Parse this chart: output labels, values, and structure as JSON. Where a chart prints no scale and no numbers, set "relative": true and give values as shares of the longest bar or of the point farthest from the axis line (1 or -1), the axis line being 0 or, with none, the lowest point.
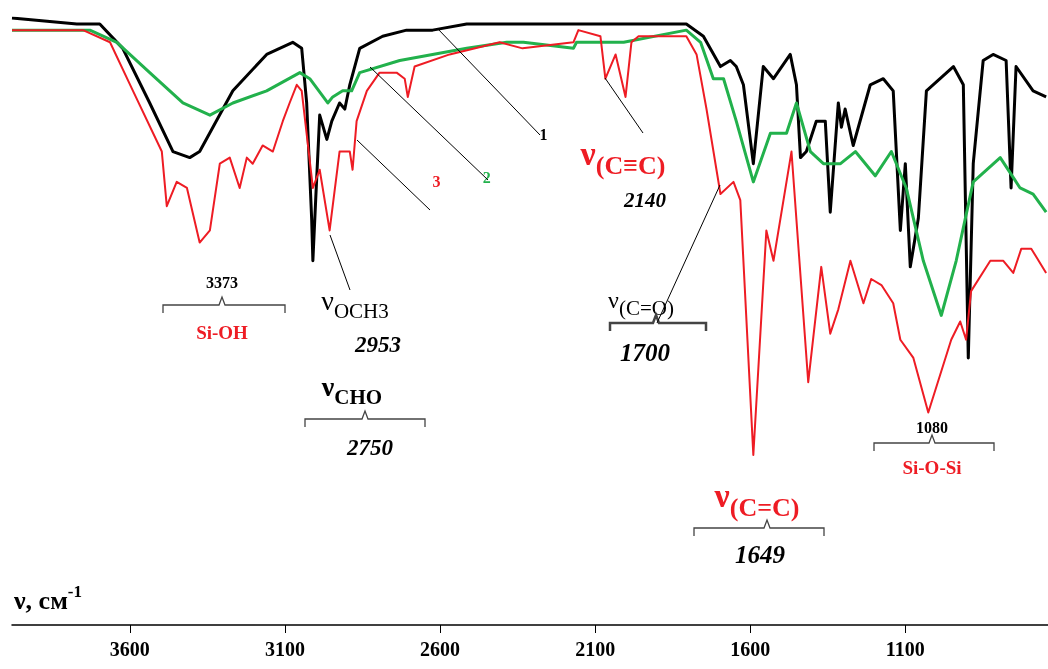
{
  "chart_data": {
    "type": "line",
    "xlabel": "ν, см$^{-1}$",
    "relative": true,
    "xlim": [
      3980,
      640
    ],
    "xticks": [
      3600,
      3100,
      2600,
      2100,
      1600,
      1100
    ],
    "series": [
      {
        "name": "1",
        "color": "#000000",
        "x": [
          3980,
          3771,
          3697,
          3623,
          3536,
          3461,
          3407,
          3375,
          3268,
          3159,
          3075,
          3046,
          3030,
          3014,
          3010,
          3001,
          2988,
          2965,
          2949,
          2924,
          2907,
          2891,
          2859,
          2785,
          2708,
          2624,
          2514,
          2334,
          1806,
          1751,
          1696,
          1664,
          1645,
          1622,
          1590,
          1558,
          1525,
          1471,
          1451,
          1438,
          1419,
          1387,
          1358,
          1342,
          1316,
          1306,
          1294,
          1268,
          1213,
          1171,
          1139,
          1116,
          1100,
          1084,
          1058,
          1032,
          945,
          913,
          897,
          881,
          849,
          817,
          775,
          759,
          743,
          688,
          646
        ],
        "values": [
          1.0,
          0.99,
          0.99,
          0.95,
          0.86,
          0.78,
          0.77,
          0.78,
          0.88,
          0.94,
          0.96,
          0.95,
          0.86,
          0.67,
          0.6,
          0.7,
          0.84,
          0.8,
          0.83,
          0.86,
          0.85,
          0.89,
          0.95,
          0.97,
          0.98,
          0.98,
          0.99,
          0.99,
          0.99,
          0.97,
          0.92,
          0.93,
          0.92,
          0.89,
          0.76,
          0.92,
          0.9,
          0.94,
          0.89,
          0.77,
          0.78,
          0.83,
          0.83,
          0.68,
          0.86,
          0.82,
          0.85,
          0.79,
          0.89,
          0.9,
          0.88,
          0.65,
          0.76,
          0.59,
          0.67,
          0.88,
          0.92,
          0.89,
          0.44,
          0.76,
          0.93,
          0.94,
          0.93,
          0.72,
          0.92,
          0.88,
          0.87
        ]
      },
      {
        "name": "2",
        "color": "#22b14c",
        "x": [
          3980,
          3729,
          3642,
          3536,
          3429,
          3342,
          3268,
          3159,
          3052,
          3020,
          2962,
          2946,
          2914,
          2885,
          2859,
          2730,
          2514,
          2385,
          2331,
          2170,
          2160,
          2008,
          1806,
          1760,
          1719,
          1686,
          1645,
          1590,
          1535,
          1483,
          1451,
          1406,
          1364,
          1309,
          1261,
          1197,
          1145,
          1097,
          1042,
          984,
          936,
          881,
          794,
          730,
          688,
          646
        ],
        "values": [
          0.98,
          0.98,
          0.96,
          0.91,
          0.86,
          0.84,
          0.86,
          0.88,
          0.91,
          0.9,
          0.86,
          0.87,
          0.88,
          0.88,
          0.91,
          0.93,
          0.95,
          0.96,
          0.96,
          0.95,
          0.96,
          0.96,
          0.98,
          0.96,
          0.9,
          0.9,
          0.83,
          0.73,
          0.81,
          0.81,
          0.86,
          0.78,
          0.76,
          0.76,
          0.78,
          0.74,
          0.78,
          0.72,
          0.6,
          0.51,
          0.6,
          0.73,
          0.77,
          0.72,
          0.71,
          0.68
        ]
      },
      {
        "name": "3",
        "color": "#ee1c24",
        "x": [
          3980,
          3751,
          3664,
          3590,
          3497,
          3481,
          3449,
          3416,
          3375,
          3342,
          3310,
          3278,
          3246,
          3223,
          3204,
          3172,
          3139,
          3107,
          3085,
          3062,
          3046,
          3010,
          2988,
          2956,
          2924,
          2891,
          2882,
          2869,
          2836,
          2795,
          2740,
          2714,
          2704,
          2682,
          2569,
          2408,
          2334,
          2170,
          2154,
          2083,
          2067,
          2034,
          2002,
          1983,
          1960,
          1806,
          1773,
          1741,
          1696,
          1654,
          1632,
          1590,
          1548,
          1525,
          1467,
          1413,
          1371,
          1342,
          1316,
          1277,
          1235,
          1210,
          1177,
          1139,
          1116,
          1074,
          1026,
          952,
          923,
          904,
          888,
          826,
          784,
          752,
          726,
          694,
          646
        ],
        "values": [
          0.98,
          0.98,
          0.96,
          0.88,
          0.78,
          0.69,
          0.73,
          0.72,
          0.63,
          0.65,
          0.76,
          0.77,
          0.72,
          0.77,
          0.76,
          0.79,
          0.78,
          0.83,
          0.86,
          0.89,
          0.88,
          0.72,
          0.75,
          0.65,
          0.78,
          0.78,
          0.75,
          0.83,
          0.88,
          0.91,
          0.91,
          0.9,
          0.87,
          0.92,
          0.94,
          0.96,
          0.95,
          0.96,
          0.98,
          0.97,
          0.9,
          0.94,
          0.87,
          0.96,
          0.97,
          0.97,
          0.94,
          0.85,
          0.71,
          0.73,
          0.7,
          0.28,
          0.65,
          0.6,
          0.78,
          0.4,
          0.59,
          0.48,
          0.52,
          0.6,
          0.53,
          0.57,
          0.56,
          0.53,
          0.47,
          0.44,
          0.35,
          0.47,
          0.5,
          0.47,
          0.55,
          0.6,
          0.6,
          0.58,
          0.62,
          0.62,
          0.58
        ]
      }
    ],
    "annotations": [
      "3373",
      "Si-OH",
      "ν$_{OCH3}$",
      "2953",
      "ν$_{CHO}$",
      "2750",
      "ν$_{(C≡C)}$",
      "2140",
      "ν$_{(C=O)}$",
      "1700",
      "ν$_{(C=C)}$",
      "1649",
      "1080",
      "Si-O-Si"
    ]
  }
}
